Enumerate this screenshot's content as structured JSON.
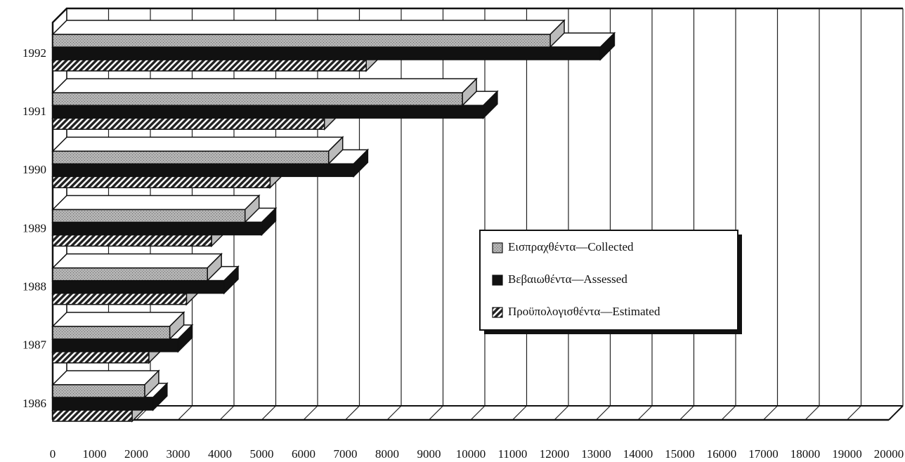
{
  "chart_data": {
    "type": "bar3d",
    "orientation": "horizontal",
    "categories": [
      "1986",
      "1987",
      "1988",
      "1989",
      "1990",
      "1991",
      "1992"
    ],
    "series": [
      {
        "name": "Εισπραχθέντα—Collected",
        "color": "#a8a8a8",
        "pattern": "stipple",
        "values": [
          2200,
          2800,
          3700,
          4600,
          6600,
          9800,
          11900
        ]
      },
      {
        "name": "Βεβαιωθέντα—Assessed",
        "color": "#111111",
        "pattern": "solid",
        "values": [
          2400,
          3000,
          4100,
          5000,
          7200,
          10300,
          13100
        ]
      },
      {
        "name": "Προϋπολογισθέντα—Estimated",
        "color": "#444444",
        "pattern": "hatch",
        "values": [
          1900,
          2300,
          3200,
          3800,
          5200,
          6500,
          7500
        ]
      }
    ],
    "xlim": [
      0,
      20000
    ],
    "xticks": [
      0,
      1000,
      2000,
      3000,
      4000,
      5000,
      6000,
      7000,
      8000,
      9000,
      10000,
      11000,
      12000,
      13000,
      14000,
      15000,
      16000,
      17000,
      18000,
      19000,
      20000
    ],
    "grid": true
  }
}
